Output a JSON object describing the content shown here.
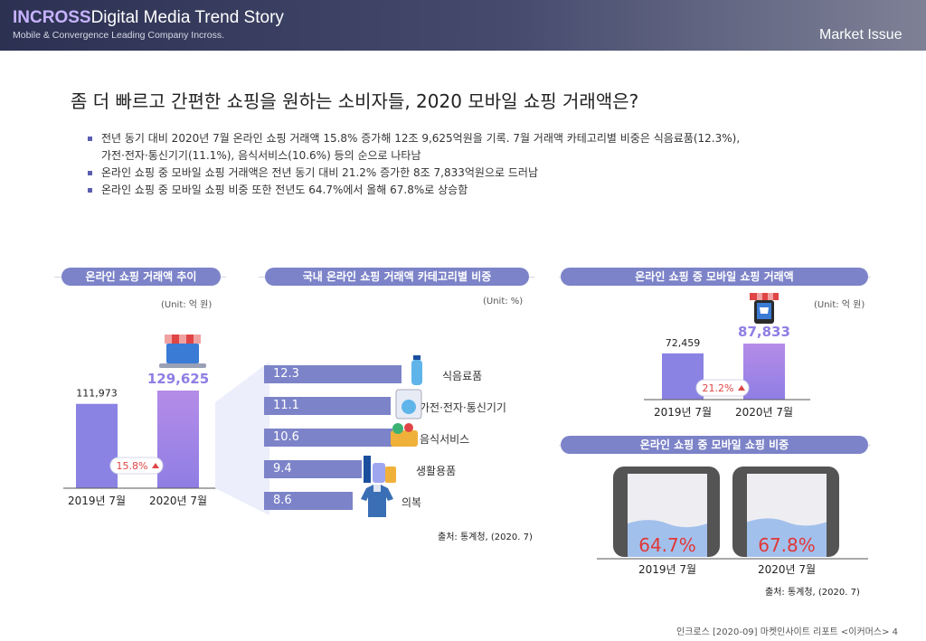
{
  "header": {
    "brand_part1": "INCROSS",
    "brand_part2": "Digital Media Trend Story",
    "tagline": "Mobile & Convergence Leading Company Incross.",
    "section": "Market Issue"
  },
  "title": "좀 더 빠르고 간편한 쇼핑을 원하는 소비자들, 2020 모바일 쇼핑 거래액은?",
  "bullets": [
    "전년 동기 대비 2020년 7월 온라인 쇼핑 거래액 15.8% 증가해 12조 9,625억원을 기록. 7월 거래액 카테고리별 비중은 식음료품(12.3%),",
    "가전·전자·통신기기(11.1%), 음식서비스(10.6%) 등의 순으로 나타남",
    "온라인 쇼핑 중 모바일 쇼핑 거래액은 전년 동기 대비 21.2% 증가한 8조 7,833억원으로 드러남",
    "온라인 쇼핑 중 모바일 쇼핑 비중 또한 전년도 64.7%에서 올해 67.8%로 상승함"
  ],
  "panel1": {
    "title": "온라인 쇼핑 거래액 추이",
    "unit": "(Unit: 억 원)",
    "growth": "15.8%"
  },
  "panel2": {
    "title": "국내 온라인 쇼핑 거래액 카테고리별 비중",
    "unit": "(Unit: %)",
    "source": "출처: 통계청, (2020. 7)"
  },
  "panel3": {
    "title": "온라인 쇼핑 중 모바일 쇼핑 거래액",
    "unit": "(Unit: 억 원)",
    "growth": "21.2%"
  },
  "panel4": {
    "title": "온라인 쇼핑 중 모바일 쇼핑 비중",
    "source": "출처: 통계청, (2020. 7)"
  },
  "chart_data": [
    {
      "type": "bar",
      "categories": [
        "2019년 7월",
        "2020년 7월"
      ],
      "values": [
        111973,
        129625
      ],
      "labels": [
        "111,973",
        "129,625"
      ]
    },
    {
      "type": "bar",
      "categories": [
        "식음료품",
        "가전·전자·통신기기",
        "음식서비스",
        "생활용품",
        "의복"
      ],
      "values": [
        12.3,
        11.1,
        10.6,
        9.4,
        8.6
      ],
      "labels": [
        "12.3",
        "11.1",
        "10.6",
        "9.4",
        "8.6"
      ]
    },
    {
      "type": "bar",
      "categories": [
        "2019년 7월",
        "2020년 7월"
      ],
      "values": [
        72459,
        87833
      ],
      "labels": [
        "72,459",
        "87,833"
      ]
    },
    {
      "type": "bar",
      "categories": [
        "2019년 7월",
        "2020년 7월"
      ],
      "values": [
        64.7,
        67.8
      ],
      "labels": [
        "64.7%",
        "67.8%"
      ]
    }
  ],
  "footer": "인크로스 [2020-09] 마켓인사이트 리포트 <이커머스> 4"
}
